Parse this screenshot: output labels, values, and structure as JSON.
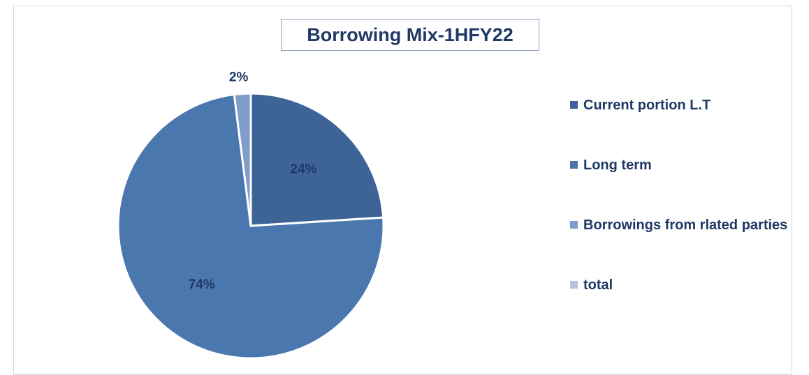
{
  "chart_data": {
    "type": "pie",
    "title": "Borrowing Mix-1HFY22",
    "slices": [
      {
        "name": "Current portion L.T",
        "value": 24,
        "label": "24%",
        "color": "#3e6396"
      },
      {
        "name": "Long term",
        "value": 74,
        "label": "74%",
        "color": "#4a77ae"
      },
      {
        "name": "Borrowings from rlated parties",
        "value": 2,
        "label": "2%",
        "color": "#7f9ccb"
      },
      {
        "name": "total",
        "value": 0,
        "label": "",
        "color": "#b4c3dd"
      }
    ],
    "legend_position": "right",
    "start_angle_deg": 0,
    "direction": "clockwise"
  }
}
